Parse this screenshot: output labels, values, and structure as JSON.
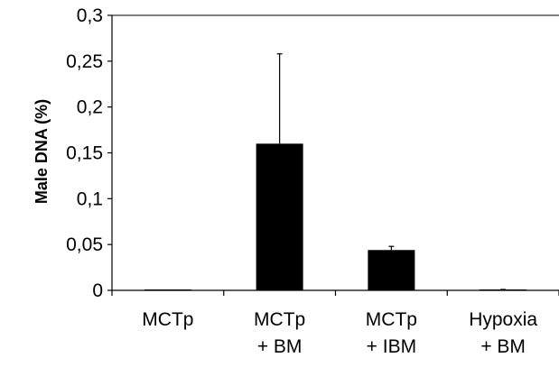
{
  "chart_data": {
    "type": "bar",
    "title": "",
    "xlabel": "",
    "ylabel": "Male DNA (%)",
    "ylim": [
      0,
      0.3
    ],
    "yticks": [
      "0",
      "0,05",
      "0,1",
      "0,15",
      "0,2",
      "0,25",
      "0,3"
    ],
    "categories": [
      [
        "MCTp"
      ],
      [
        "MCTp",
        "+ BM"
      ],
      [
        "MCTp",
        "+ IBM"
      ],
      [
        "Hypoxia",
        "+ BM"
      ]
    ],
    "values": [
      0,
      0.16,
      0.044,
      0
    ],
    "error_upper": [
      0,
      0.098,
      0.004,
      0.001
    ],
    "bar_color": "#000000",
    "axis_color": "#000000",
    "grid": false,
    "legend": "none"
  }
}
